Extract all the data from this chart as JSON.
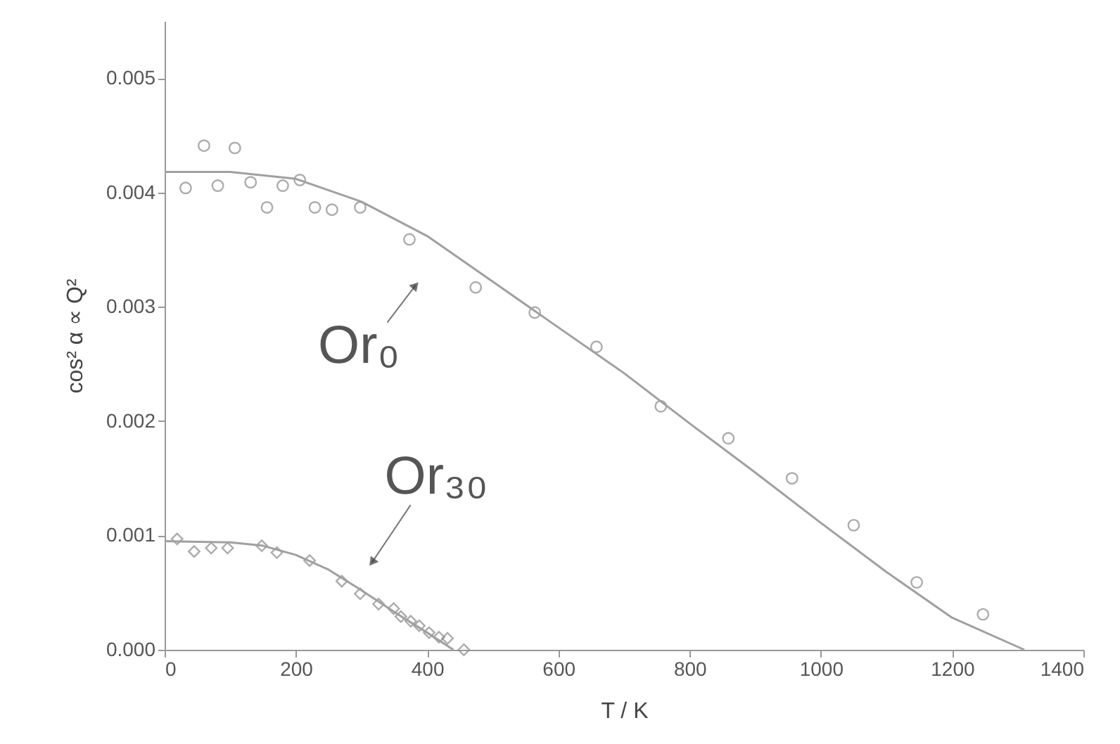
{
  "chart_data": {
    "type": "scatter",
    "xlabel": "T / K",
    "ylabel": "cos² α ∝ Q²",
    "xlim": [
      0,
      1400
    ],
    "xticks": [
      0,
      200,
      400,
      600,
      800,
      1000,
      1200,
      1400
    ],
    "ylim": [
      0,
      0.0055
    ],
    "yticks": [
      {
        "value": 0,
        "label": "0.000"
      },
      {
        "value": 0.001,
        "label": "0.001"
      },
      {
        "value": 0.002,
        "label": "0.002"
      },
      {
        "value": 0.003,
        "label": "0.003"
      },
      {
        "value": 0.004,
        "label": "0.004"
      },
      {
        "value": 0.005,
        "label": "0.005"
      }
    ],
    "grid": false,
    "series": [
      {
        "marker": "circle",
        "color": "#8a8a8a",
        "x": [
          32,
          60,
          81,
          107,
          131,
          156,
          180,
          206,
          229,
          255,
          298,
          373,
          474,
          564,
          658,
          756,
          859,
          956,
          1050,
          1146,
          1247
        ],
        "values": [
          0.00404,
          0.00441,
          0.00406,
          0.00439,
          0.00409,
          0.00387,
          0.00406,
          0.00411,
          0.00387,
          0.00385,
          0.00387,
          0.00359,
          0.00317,
          0.00295,
          0.00265,
          0.00213,
          0.00185,
          0.0015,
          0.00109,
          0.00059,
          0.00031
        ]
      },
      {
        "type": "line",
        "color": "#a0a0a0",
        "x": [
          0,
          100,
          200,
          300,
          400,
          500,
          600,
          700,
          800,
          900,
          1000,
          1100,
          1200,
          1310
        ],
        "values": [
          0.00418,
          0.00418,
          0.00412,
          0.00392,
          0.00362,
          0.00322,
          0.00282,
          0.00242,
          0.00198,
          0.00155,
          0.00111,
          0.00068,
          0.00028,
          0
        ]
      },
      {
        "marker": "diamond",
        "color": "#8a8a8a",
        "x": [
          19,
          45,
          71,
          96,
          148,
          171,
          221,
          270,
          298,
          326,
          349,
          360,
          375,
          388,
          403,
          418,
          431,
          456
        ],
        "values": [
          0.00097,
          0.00086,
          0.00089,
          0.00089,
          0.00091,
          0.00085,
          0.00078,
          0.0006,
          0.00049,
          0.0004,
          0.00036,
          0.00029,
          0.00025,
          0.00021,
          0.00015,
          0.00011,
          0.0001,
          0
        ]
      },
      {
        "type": "line",
        "color": "#a0a0a0",
        "x": [
          0,
          100,
          150,
          200,
          250,
          300,
          350,
          400,
          440
        ],
        "values": [
          0.00095,
          0.00094,
          0.00091,
          0.00083,
          0.0007,
          0.00052,
          0.00033,
          0.00015,
          0
        ]
      }
    ],
    "annotations": [
      "Or₀",
      "Or₃₀"
    ]
  }
}
